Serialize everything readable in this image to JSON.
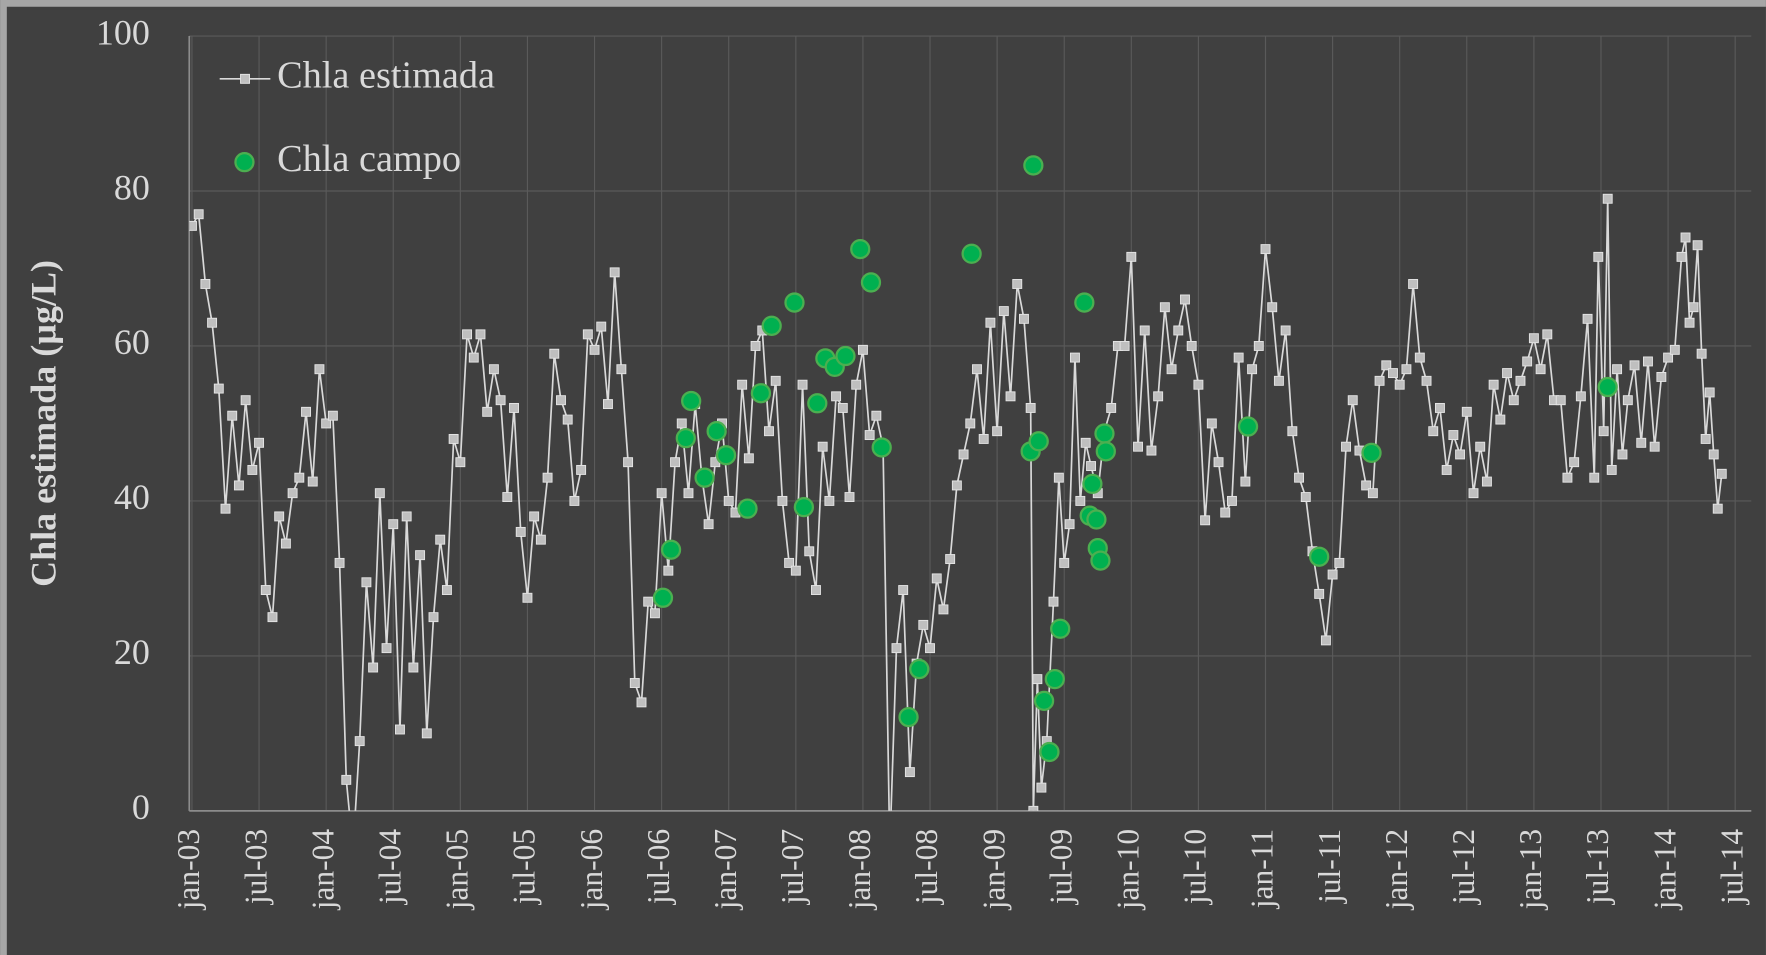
{
  "chart_data": {
    "type": "line",
    "y_label": "Chla estimada (µg/L)",
    "xlim": [
      2002.98,
      2014.62
    ],
    "ylim": [
      0,
      100
    ],
    "yticks": [
      0,
      20,
      40,
      60,
      80,
      100
    ],
    "xticks": [
      {
        "value": 2003.0,
        "label": "jan-03"
      },
      {
        "value": 2003.5,
        "label": "jul-03"
      },
      {
        "value": 2004.0,
        "label": "jan-04"
      },
      {
        "value": 2004.5,
        "label": "jul-04"
      },
      {
        "value": 2005.0,
        "label": "jan-05"
      },
      {
        "value": 2005.5,
        "label": "jul-05"
      },
      {
        "value": 2006.0,
        "label": "jan-06"
      },
      {
        "value": 2006.5,
        "label": "jul-06"
      },
      {
        "value": 2007.0,
        "label": "jan-07"
      },
      {
        "value": 2007.5,
        "label": "jul-07"
      },
      {
        "value": 2008.0,
        "label": "jan-08"
      },
      {
        "value": 2008.5,
        "label": "jul-08"
      },
      {
        "value": 2009.0,
        "label": "jan-09"
      },
      {
        "value": 2009.5,
        "label": "jul-09"
      },
      {
        "value": 2010.0,
        "label": "jan-10"
      },
      {
        "value": 2010.5,
        "label": "jul-10"
      },
      {
        "value": 2011.0,
        "label": "jan-11"
      },
      {
        "value": 2011.5,
        "label": "jul-11"
      },
      {
        "value": 2012.0,
        "label": "jan-12"
      },
      {
        "value": 2012.5,
        "label": "jul-12"
      },
      {
        "value": 2013.0,
        "label": "jan-13"
      },
      {
        "value": 2013.5,
        "label": "jul-13"
      },
      {
        "value": 2014.0,
        "label": "jan-14"
      },
      {
        "value": 2014.5,
        "label": "jul-14"
      }
    ],
    "grid": true,
    "legend": "upper left",
    "series": [
      {
        "name": "Chla estimada",
        "type": "line",
        "color": "#d9d9d9",
        "marker_color": "#bfbfbf",
        "x": [
          2003.0,
          2003.05,
          2003.1,
          2003.15,
          2003.2,
          2003.25,
          2003.3,
          2003.35,
          2003.4,
          2003.45,
          2003.5,
          2003.55,
          2003.6,
          2003.65,
          2003.7,
          2003.75,
          2003.8,
          2003.85,
          2003.9,
          2003.95,
          2004.0,
          2004.05,
          2004.1,
          2004.15,
          2004.2,
          2004.25,
          2004.3,
          2004.35,
          2004.4,
          2004.45,
          2004.5,
          2004.55,
          2004.6,
          2004.65,
          2004.7,
          2004.75,
          2004.8,
          2004.85,
          2004.9,
          2004.95,
          2005.0,
          2005.05,
          2005.1,
          2005.15,
          2005.2,
          2005.25,
          2005.3,
          2005.35,
          2005.4,
          2005.45,
          2005.5,
          2005.55,
          2005.6,
          2005.65,
          2005.7,
          2005.75,
          2005.8,
          2005.85,
          2005.9,
          2005.95,
          2006.0,
          2006.05,
          2006.1,
          2006.15,
          2006.2,
          2006.25,
          2006.3,
          2006.35,
          2006.4,
          2006.45,
          2006.5,
          2006.55,
          2006.6,
          2006.65,
          2006.7,
          2006.75,
          2006.8,
          2006.85,
          2006.9,
          2006.95,
          2007.0,
          2007.05,
          2007.1,
          2007.15,
          2007.2,
          2007.25,
          2007.3,
          2007.35,
          2007.4,
          2007.45,
          2007.5,
          2007.55,
          2007.6,
          2007.65,
          2007.7,
          2007.75,
          2007.8,
          2007.85,
          2007.9,
          2007.95,
          2008.0,
          2008.05,
          2008.1,
          2008.15,
          2008.2,
          2008.25,
          2008.3,
          2008.35,
          2008.4,
          2008.45,
          2008.5,
          2008.55,
          2008.6,
          2008.65,
          2008.7,
          2008.75,
          2008.8,
          2008.85,
          2008.9,
          2008.95,
          2009.0,
          2009.05,
          2009.1,
          2009.15,
          2009.2,
          2009.25,
          2009.27,
          2009.3,
          2009.33,
          2009.37,
          2009.42,
          2009.46,
          2009.5,
          2009.54,
          2009.58,
          2009.62,
          2009.66,
          2009.7,
          2009.75,
          2009.8,
          2009.85,
          2009.9,
          2009.95,
          2010.0,
          2010.05,
          2010.1,
          2010.15,
          2010.2,
          2010.25,
          2010.3,
          2010.35,
          2010.4,
          2010.45,
          2010.5,
          2010.55,
          2010.6,
          2010.65,
          2010.7,
          2010.75,
          2010.8,
          2010.85,
          2010.9,
          2010.95,
          2011.0,
          2011.05,
          2011.1,
          2011.15,
          2011.2,
          2011.25,
          2011.3,
          2011.35,
          2011.4,
          2011.45,
          2011.5,
          2011.55,
          2011.6,
          2011.65,
          2011.7,
          2011.75,
          2011.8,
          2011.85,
          2011.9,
          2011.95,
          2012.0,
          2012.05,
          2012.1,
          2012.15,
          2012.2,
          2012.25,
          2012.3,
          2012.35,
          2012.4,
          2012.45,
          2012.5,
          2012.55,
          2012.6,
          2012.65,
          2012.7,
          2012.75,
          2012.8,
          2012.85,
          2012.9,
          2012.95,
          2013.0,
          2013.05,
          2013.1,
          2013.15,
          2013.2,
          2013.25,
          2013.3,
          2013.35,
          2013.4,
          2013.45,
          2013.48,
          2013.52,
          2013.55,
          2013.58,
          2013.62,
          2013.66,
          2013.7,
          2013.75,
          2013.8,
          2013.85,
          2013.9,
          2013.95,
          2014.0,
          2014.05,
          2014.1,
          2014.13,
          2014.16,
          2014.19,
          2014.22,
          2014.25,
          2014.28,
          2014.31,
          2014.34,
          2014.37,
          2014.4
        ],
        "values": [
          75.5,
          77,
          68,
          63,
          54.5,
          39,
          51,
          42,
          53,
          44,
          47.5,
          28.5,
          25,
          38,
          34.5,
          41,
          43,
          51.5,
          42.5,
          57,
          50,
          51,
          32,
          4,
          -5,
          9,
          29.5,
          18.5,
          41,
          21,
          37,
          10.5,
          38,
          18.5,
          33,
          10,
          25,
          35,
          28.5,
          48,
          45,
          61.5,
          58.5,
          61.5,
          51.5,
          57,
          53,
          40.5,
          52,
          36,
          27.5,
          38,
          35,
          43,
          59,
          53,
          50.5,
          40,
          44,
          61.5,
          59.5,
          62.5,
          52.5,
          69.5,
          57,
          45,
          16.5,
          14,
          27,
          25.5,
          41,
          31,
          45,
          50,
          41,
          52.5,
          43,
          37,
          45,
          50,
          40,
          38.5,
          55,
          45.5,
          60,
          62,
          49,
          55.5,
          40,
          32,
          31,
          55,
          33.5,
          28.5,
          47,
          40,
          53.5,
          52,
          40.5,
          55,
          59.5,
          48.5,
          51,
          47,
          -5,
          21,
          28.5,
          5,
          19,
          24,
          21,
          30,
          26,
          32.5,
          42,
          46,
          50,
          57,
          48,
          63,
          49,
          64.5,
          53.5,
          68,
          63.5,
          52,
          0,
          17,
          3,
          9,
          27,
          43,
          32,
          37,
          58.5,
          40,
          47.5,
          44.5,
          41,
          49,
          52,
          60,
          60,
          71.5,
          47,
          62,
          46.5,
          53.5,
          65,
          57,
          62,
          66,
          60,
          55,
          37.5,
          50,
          45,
          38.5,
          40,
          58.5,
          42.5,
          57,
          60,
          72.5,
          65,
          55.5,
          62,
          49,
          43,
          40.5,
          33.5,
          28,
          22,
          30.5,
          32,
          47,
          53,
          46.5,
          42,
          41,
          55.5,
          57.5,
          56.5,
          55,
          57,
          68,
          58.5,
          55.5,
          49,
          52,
          44,
          48.5,
          46,
          51.5,
          41,
          47,
          42.5,
          55,
          50.5,
          56.5,
          53,
          55.5,
          58,
          61,
          57,
          61.5,
          53,
          53,
          43,
          45,
          53.5,
          63.5,
          43,
          71.5,
          49,
          79,
          44,
          57,
          46,
          53,
          57.5,
          47.5,
          58,
          47,
          56,
          58.5,
          59.5,
          71.5,
          74,
          63,
          65,
          73,
          59,
          48,
          54,
          46,
          39,
          43.5
        ]
      },
      {
        "name": "Chla campo",
        "type": "scatter",
        "color": "#00b050",
        "x": [
          2006.51,
          2006.57,
          2006.68,
          2006.72,
          2006.82,
          2006.91,
          2006.98,
          2007.14,
          2007.24,
          2007.32,
          2007.49,
          2007.56,
          2007.66,
          2007.72,
          2007.79,
          2007.87,
          2007.98,
          2008.06,
          2008.14,
          2008.34,
          2008.42,
          2008.81,
          2009.25,
          2009.27,
          2009.31,
          2009.35,
          2009.39,
          2009.43,
          2009.47,
          2009.65,
          2009.69,
          2009.71,
          2009.74,
          2009.75,
          2009.77,
          2009.8,
          2009.81,
          2010.87,
          2011.4,
          2011.79,
          2013.55
        ],
        "values": [
          27.5,
          33.7,
          48.1,
          52.9,
          43,
          49,
          45.9,
          39,
          53.9,
          62.6,
          65.6,
          39.2,
          52.6,
          58.4,
          57.3,
          58.7,
          72.5,
          68.2,
          46.9,
          12.1,
          18.3,
          71.9,
          46.4,
          83.3,
          47.7,
          14.2,
          7.6,
          17,
          23.5,
          65.6,
          38.1,
          42.2,
          37.6,
          33.9,
          32.3,
          48.7,
          46.4,
          49.6,
          32.8,
          46.2,
          54.7
        ]
      }
    ]
  }
}
